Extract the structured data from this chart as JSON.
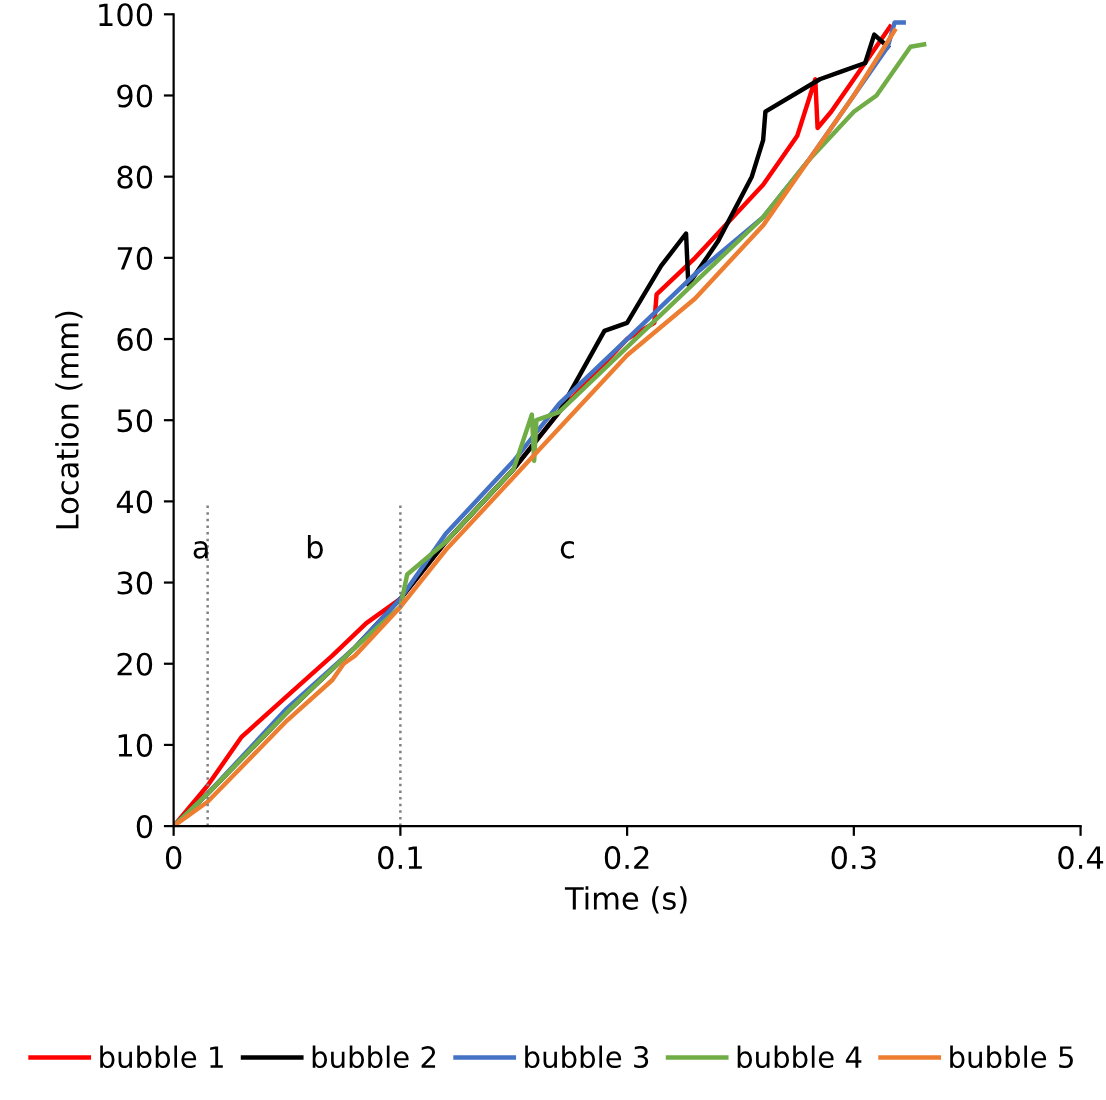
{
  "chart_data": {
    "type": "line",
    "xlabel": "Time (s)",
    "ylabel": "Location (mm)",
    "xlim": [
      0,
      0.4
    ],
    "ylim": [
      0,
      100
    ],
    "xticks": [
      0,
      0.1,
      0.2,
      0.3,
      0.4
    ],
    "yticks": [
      0,
      10,
      20,
      30,
      40,
      50,
      60,
      70,
      80,
      90,
      100
    ],
    "grid": false,
    "legend": "bottom",
    "marker": "none",
    "line_style": "solid",
    "series": [
      {
        "name": "bubble 1",
        "color": "#ff0000",
        "x": [
          0,
          0.015,
          0.03,
          0.05,
          0.07,
          0.085,
          0.1,
          0.12,
          0.15,
          0.17,
          0.2,
          0.212,
          0.213,
          0.23,
          0.26,
          0.275,
          0.283,
          0.284,
          0.29,
          0.3,
          0.316
        ],
        "values": [
          0,
          5,
          11,
          16,
          21,
          25,
          28,
          35,
          44,
          51,
          60,
          62,
          65.5,
          70,
          79,
          85,
          92,
          86,
          88,
          92,
          98.5
        ]
      },
      {
        "name": "bubble 2",
        "color": "#000000",
        "x": [
          0,
          0.015,
          0.05,
          0.08,
          0.1,
          0.12,
          0.15,
          0.17,
          0.19,
          0.2,
          0.215,
          0.226,
          0.227,
          0.24,
          0.255,
          0.26,
          0.261,
          0.285,
          0.295,
          0.305,
          0.309,
          0.315
        ],
        "values": [
          0,
          4,
          14,
          22,
          28,
          35,
          44,
          51,
          61,
          62,
          69,
          73,
          66.7,
          72,
          80,
          84.5,
          88,
          92,
          93,
          94,
          97.5,
          96
        ]
      },
      {
        "name": "bubble 3",
        "color": "#4472c4",
        "x": [
          0,
          0.015,
          0.05,
          0.08,
          0.1,
          0.12,
          0.15,
          0.17,
          0.2,
          0.23,
          0.26,
          0.28,
          0.3,
          0.315,
          0.318,
          0.322
        ],
        "values": [
          0,
          4,
          14.5,
          22,
          28,
          36,
          45,
          52,
          60,
          68,
          75,
          82,
          90,
          96,
          99,
          99
        ]
      },
      {
        "name": "bubble 4",
        "color": "#70ad47",
        "x": [
          0,
          0.015,
          0.05,
          0.08,
          0.1,
          0.103,
          0.12,
          0.15,
          0.158,
          0.159,
          0.16,
          0.17,
          0.2,
          0.23,
          0.26,
          0.28,
          0.3,
          0.31,
          0.32,
          0.325,
          0.331
        ],
        "values": [
          0,
          4,
          14,
          22,
          27,
          31,
          35,
          44,
          50.7,
          45,
          50,
          51,
          59,
          67,
          75,
          82,
          88,
          90,
          94,
          96,
          96.3
        ]
      },
      {
        "name": "bubble 5",
        "color": "#ed7d31",
        "x": [
          0,
          0.015,
          0.05,
          0.07,
          0.075,
          0.08,
          0.1,
          0.12,
          0.15,
          0.17,
          0.2,
          0.23,
          0.26,
          0.28,
          0.3,
          0.318
        ],
        "values": [
          0,
          3,
          13,
          18,
          20,
          21,
          27,
          34,
          43,
          49,
          58,
          65,
          74,
          82,
          90,
          98
        ]
      }
    ],
    "ref_lines": [
      {
        "axis": "x",
        "value": 0.015,
        "color": "#808080",
        "line_style": "dotted"
      },
      {
        "axis": "x",
        "value": 0.1,
        "color": "#808080",
        "line_style": "dotted"
      }
    ],
    "annotations": [
      "a",
      "b",
      "c"
    ]
  }
}
